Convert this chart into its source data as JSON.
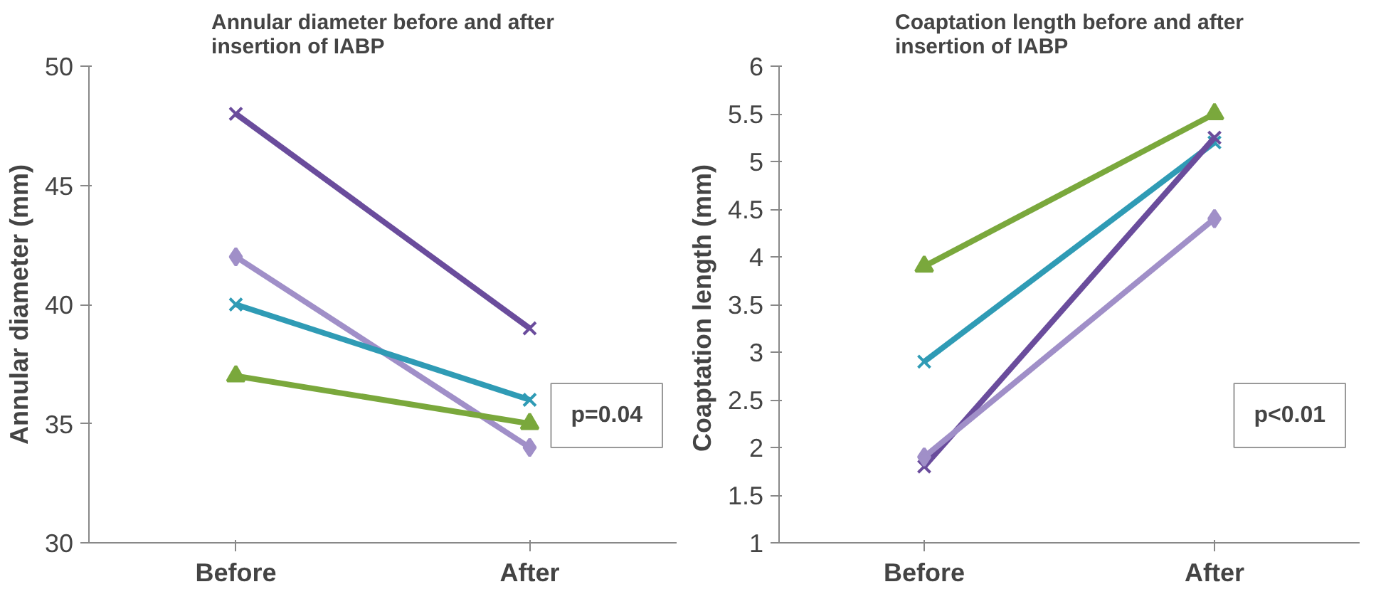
{
  "chart_data": [
    {
      "type": "line",
      "title": "Annular diameter before and after insertion of IABP",
      "ylabel": "Annular diameter (mm)",
      "categories": [
        "Before",
        "After"
      ],
      "ylim": [
        30,
        50
      ],
      "yticks": [
        30,
        35,
        40,
        45,
        50
      ],
      "grid": false,
      "line_style": "solid",
      "annotations": [
        "p=0.04"
      ],
      "series": [
        {
          "color": "#6a4c9c",
          "marker": "cross",
          "values": [
            48,
            39
          ]
        },
        {
          "color": "#a08fc8",
          "marker": "diamond",
          "values": [
            42,
            34
          ]
        },
        {
          "color": "#2f9bb5",
          "marker": "cross",
          "values": [
            40,
            36
          ]
        },
        {
          "color": "#7aa83c",
          "marker": "triangle",
          "values": [
            37,
            35
          ]
        }
      ]
    },
    {
      "type": "line",
      "title": "Coaptation length before and after insertion of IABP",
      "ylabel": "Coaptation length  (mm)",
      "categories": [
        "Before",
        "After"
      ],
      "ylim": [
        1,
        6
      ],
      "yticks": [
        1,
        1.5,
        2,
        2.5,
        3,
        3.5,
        4,
        4.5,
        5,
        5.5,
        6
      ],
      "grid": false,
      "line_style": "solid",
      "annotations": [
        "p<0.01"
      ],
      "series": [
        {
          "color": "#7aa83c",
          "marker": "triangle",
          "values": [
            3.9,
            5.5
          ]
        },
        {
          "color": "#2f9bb5",
          "marker": "cross",
          "values": [
            2.9,
            5.2
          ]
        },
        {
          "color": "#6a4c9c",
          "marker": "cross",
          "values": [
            1.8,
            5.25
          ]
        },
        {
          "color": "#a08fc8",
          "marker": "diamond",
          "values": [
            1.9,
            4.4
          ]
        }
      ]
    }
  ]
}
